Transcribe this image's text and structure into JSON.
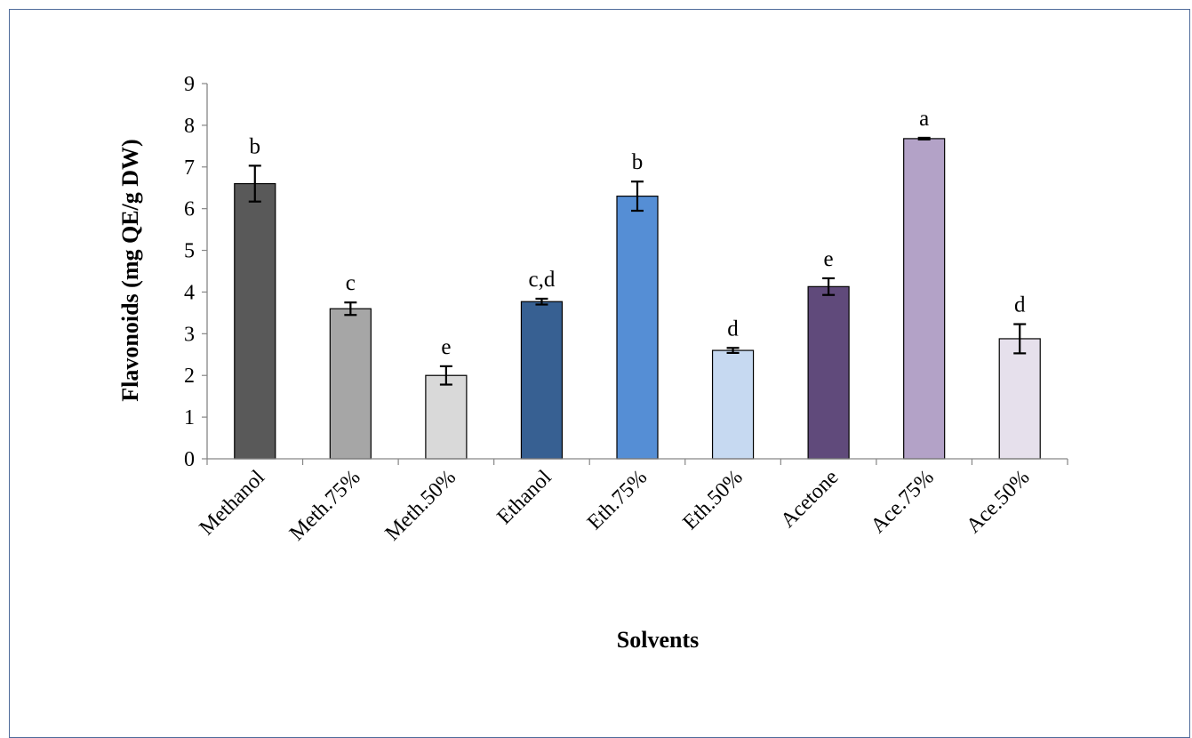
{
  "chart_data": {
    "type": "bar",
    "title": "",
    "xlabel": "Solvents",
    "ylabel": "Flavonoids (mg QE/g DW)",
    "ylim": [
      0,
      9
    ],
    "yticks": [
      0,
      1,
      2,
      3,
      4,
      5,
      6,
      7,
      8,
      9
    ],
    "grid": false,
    "legend": "none",
    "categories": [
      "Methanol",
      "Meth.75%",
      "Meth.50%",
      "Ethanol",
      "Eth.75%",
      "Eth.50%",
      "Acetone",
      "Ace.75%",
      "Ace.50%"
    ],
    "values": [
      6.6,
      3.6,
      2.0,
      3.77,
      6.3,
      2.6,
      4.13,
      7.68,
      2.88
    ],
    "errors": [
      0.43,
      0.15,
      0.22,
      0.07,
      0.35,
      0.06,
      0.2,
      0.02,
      0.35
    ],
    "significance": [
      "b",
      "c",
      "e",
      "c,d",
      "b",
      "d",
      "e",
      "a",
      "d"
    ],
    "colors": [
      "#595959",
      "#a6a6a6",
      "#d9d9d9",
      "#376092",
      "#558ed5",
      "#c6d9f1",
      "#604a7b",
      "#b3a2c7",
      "#e6e0ec"
    ]
  }
}
